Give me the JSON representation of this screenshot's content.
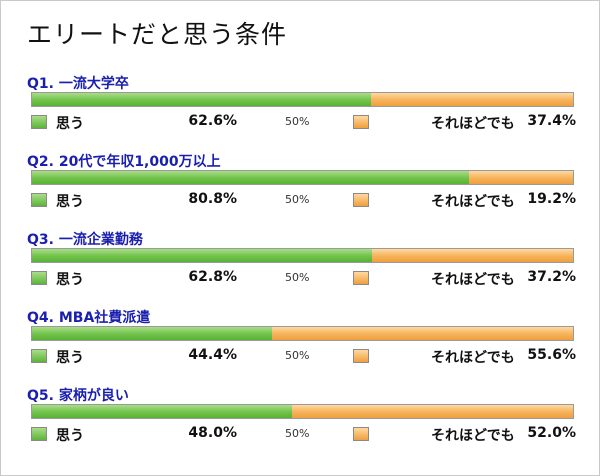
{
  "title": "エリートだと思う条件",
  "colors": {
    "yes": "#6cc045",
    "no": "#f4aa50",
    "question": "#1a1fae"
  },
  "chart_data": {
    "type": "bar",
    "orientation": "horizontal-stacked-100",
    "title": "エリートだと思う条件",
    "series": [
      {
        "name": "思う",
        "values": [
          62.6,
          80.8,
          62.8,
          44.4,
          48.0
        ]
      },
      {
        "name": "それほどでも",
        "values": [
          37.4,
          19.2,
          37.2,
          55.6,
          52.0
        ]
      }
    ],
    "categories": [
      "Q1. 一流大学卒",
      "Q2. 20代で年収1,000万以上",
      "Q3. 一流企業勤務",
      "Q4. MBA社費派遣",
      "Q5. 家柄が良い"
    ],
    "midpoint_label": "50%",
    "questions": [
      {
        "label": "Q1. 一流大学卒",
        "yes": 62.6,
        "no": 37.4,
        "yes_text": "62.6%",
        "no_text": "37.4%"
      },
      {
        "label": "Q2. 20代で年収1,000万以上",
        "yes": 80.8,
        "no": 19.2,
        "yes_text": "80.8%",
        "no_text": "19.2%"
      },
      {
        "label": "Q3. 一流企業勤務",
        "yes": 62.8,
        "no": 37.2,
        "yes_text": "62.8%",
        "no_text": "37.2%"
      },
      {
        "label": "Q4. MBA社費派遣",
        "yes": 44.4,
        "no": 55.6,
        "yes_text": "44.4%",
        "no_text": "55.6%"
      },
      {
        "label": "Q5. 家柄が良い",
        "yes": 48.0,
        "no": 52.0,
        "yes_text": "48.0%",
        "no_text": "52.0%"
      }
    ]
  }
}
